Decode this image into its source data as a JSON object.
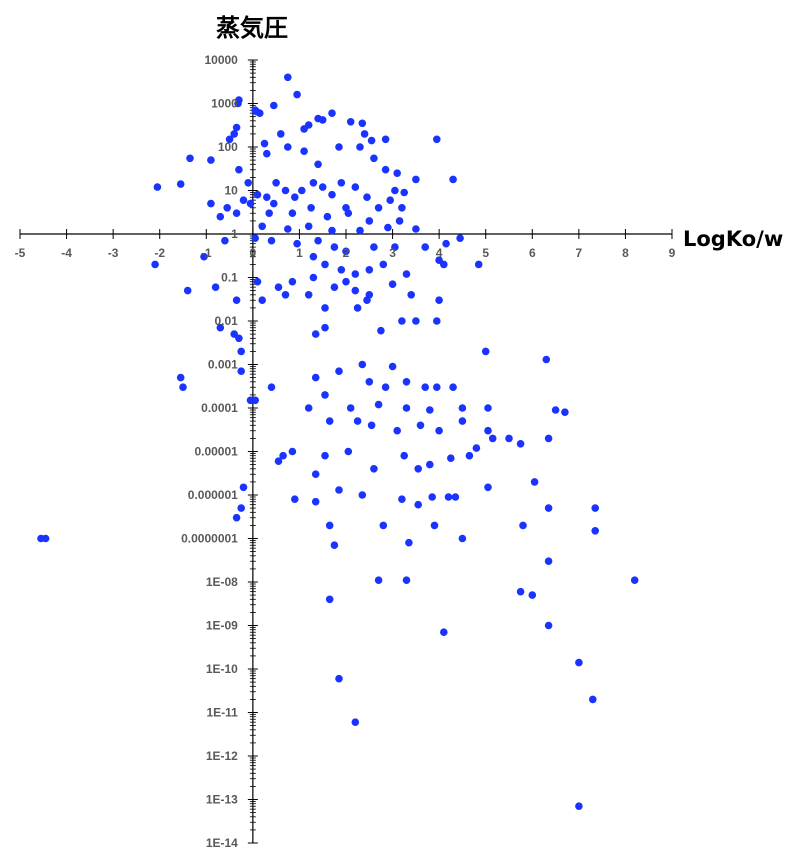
{
  "chart_data": {
    "type": "scatter",
    "title": "",
    "xlabel": "LogKo/w",
    "ylabel": "蒸気圧",
    "x_axis": {
      "min": -5,
      "max": 9,
      "tick_labels": [
        "-5",
        "-4",
        "-3",
        "-2",
        "-1",
        "0",
        "1",
        "2",
        "3",
        "4",
        "5",
        "6",
        "7",
        "8",
        "9"
      ]
    },
    "y_axis": {
      "scale": "log",
      "min": 1e-14,
      "max": 10000,
      "crosses_x_at": 0,
      "tick_labels": [
        "1E-14",
        "1E-13",
        "1E-12",
        "1E-11",
        "1E-10",
        "1E-09",
        "1E-08",
        "0.0000001",
        "0.000001",
        "0.00001",
        "0.0001",
        "0.001",
        "0.01",
        "0.1",
        "1",
        "10",
        "100",
        "1000",
        "10000"
      ]
    },
    "grid": false,
    "legend": "none",
    "marker_color": "#1a33ff",
    "points": [
      [
        0.75,
        4000
      ],
      [
        0.95,
        1600
      ],
      [
        -0.3,
        1200
      ],
      [
        -0.32,
        1000
      ],
      [
        0.45,
        900
      ],
      [
        0.05,
        700
      ],
      [
        0.08,
        650
      ],
      [
        0.15,
        600
      ],
      [
        1.7,
        600
      ],
      [
        1.4,
        450
      ],
      [
        1.5,
        420
      ],
      [
        2.1,
        380
      ],
      [
        2.35,
        350
      ],
      [
        1.2,
        320
      ],
      [
        3.95,
        150
      ],
      [
        2.4,
        200
      ],
      [
        1.1,
        260
      ],
      [
        2.55,
        140
      ],
      [
        2.85,
        150
      ],
      [
        0.25,
        120
      ],
      [
        0.6,
        200
      ],
      [
        -0.35,
        280
      ],
      [
        -0.4,
        200
      ],
      [
        -0.5,
        150
      ],
      [
        -1.35,
        55
      ],
      [
        -0.9,
        50
      ],
      [
        0.75,
        100
      ],
      [
        1.85,
        100
      ],
      [
        2.3,
        100
      ],
      [
        0.3,
        70
      ],
      [
        1.1,
        80
      ],
      [
        2.6,
        55
      ],
      [
        1.4,
        40
      ],
      [
        -0.3,
        30
      ],
      [
        2.85,
        30
      ],
      [
        3.1,
        25
      ],
      [
        3.5,
        18
      ],
      [
        4.3,
        18
      ],
      [
        -0.1,
        15
      ],
      [
        0.5,
        15
      ],
      [
        1.3,
        15
      ],
      [
        1.9,
        15
      ],
      [
        -1.55,
        14
      ],
      [
        -2.05,
        12
      ],
      [
        0.7,
        10
      ],
      [
        1.05,
        10
      ],
      [
        1.5,
        12
      ],
      [
        2.2,
        12
      ],
      [
        3.05,
        10
      ],
      [
        3.25,
        9
      ],
      [
        0.1,
        8
      ],
      [
        0.3,
        7
      ],
      [
        0.9,
        7
      ],
      [
        1.7,
        8
      ],
      [
        2.45,
        7
      ],
      [
        2.95,
        6
      ],
      [
        -0.05,
        5
      ],
      [
        -0.2,
        6
      ],
      [
        -0.9,
        5
      ],
      [
        -0.55,
        4
      ],
      [
        0.45,
        5
      ],
      [
        1.25,
        4
      ],
      [
        2.0,
        4
      ],
      [
        2.7,
        4
      ],
      [
        3.2,
        4
      ],
      [
        -0.7,
        2.5
      ],
      [
        -0.35,
        3
      ],
      [
        0.35,
        3
      ],
      [
        0.85,
        3
      ],
      [
        1.6,
        2.5
      ],
      [
        2.05,
        3
      ],
      [
        2.5,
        2
      ],
      [
        3.15,
        2
      ],
      [
        0.2,
        1.5
      ],
      [
        0.75,
        1.3
      ],
      [
        1.2,
        1.5
      ],
      [
        1.7,
        1.2
      ],
      [
        2.3,
        1.2
      ],
      [
        2.9,
        1.4
      ],
      [
        3.5,
        1.3
      ],
      [
        -0.6,
        0.7
      ],
      [
        0.05,
        0.8
      ],
      [
        0.4,
        0.7
      ],
      [
        0.95,
        0.6
      ],
      [
        1.4,
        0.7
      ],
      [
        1.75,
        0.5
      ],
      [
        2.0,
        0.4
      ],
      [
        2.6,
        0.5
      ],
      [
        3.05,
        0.5
      ],
      [
        3.7,
        0.5
      ],
      [
        4.15,
        0.6
      ],
      [
        4.45,
        0.8
      ],
      [
        4.85,
        0.2
      ],
      [
        4.0,
        0.25
      ],
      [
        4.1,
        0.2
      ],
      [
        -2.1,
        0.2
      ],
      [
        -1.05,
        0.3
      ],
      [
        1.3,
        0.3
      ],
      [
        1.55,
        0.2
      ],
      [
        1.9,
        0.15
      ],
      [
        2.2,
        0.12
      ],
      [
        2.5,
        0.15
      ],
      [
        2.8,
        0.2
      ],
      [
        3.3,
        0.12
      ],
      [
        -1.4,
        0.05
      ],
      [
        -0.8,
        0.06
      ],
      [
        0.1,
        0.08
      ],
      [
        0.55,
        0.06
      ],
      [
        0.85,
        0.08
      ],
      [
        1.3,
        0.1
      ],
      [
        1.75,
        0.06
      ],
      [
        2.0,
        0.08
      ],
      [
        2.2,
        0.05
      ],
      [
        2.5,
        0.04
      ],
      [
        3.0,
        0.07
      ],
      [
        3.4,
        0.04
      ],
      [
        4.0,
        0.03
      ],
      [
        -0.35,
        0.03
      ],
      [
        0.2,
        0.03
      ],
      [
        0.7,
        0.04
      ],
      [
        1.2,
        0.04
      ],
      [
        1.55,
        0.02
      ],
      [
        2.25,
        0.02
      ],
      [
        2.45,
        0.03
      ],
      [
        3.2,
        0.01
      ],
      [
        3.95,
        0.01
      ],
      [
        3.5,
        0.01
      ],
      [
        -0.4,
        0.005
      ],
      [
        -0.7,
        0.007
      ],
      [
        1.35,
        0.005
      ],
      [
        1.55,
        0.007
      ],
      [
        2.75,
        0.006
      ],
      [
        -0.3,
        0.004
      ],
      [
        -0.25,
        0.002
      ],
      [
        5.0,
        0.002
      ],
      [
        6.3,
        0.0013
      ],
      [
        -0.25,
        0.0007
      ],
      [
        2.35,
        0.001
      ],
      [
        3.0,
        0.0009
      ],
      [
        -1.55,
        0.0005
      ],
      [
        -1.5,
        0.0003
      ],
      [
        0.4,
        0.0003
      ],
      [
        1.35,
        0.0005
      ],
      [
        1.85,
        0.0007
      ],
      [
        2.5,
        0.0004
      ],
      [
        2.85,
        0.0003
      ],
      [
        3.3,
        0.0004
      ],
      [
        3.7,
        0.0003
      ],
      [
        3.95,
        0.0003
      ],
      [
        4.3,
        0.0003
      ],
      [
        -0.05,
        0.00015
      ],
      [
        0.05,
        0.00015
      ],
      [
        1.2,
        0.0001
      ],
      [
        1.55,
        0.0002
      ],
      [
        2.1,
        0.0001
      ],
      [
        2.7,
        0.00012
      ],
      [
        3.3,
        0.0001
      ],
      [
        3.8,
        9e-05
      ],
      [
        4.5,
        0.0001
      ],
      [
        5.05,
        0.0001
      ],
      [
        6.5,
        9e-05
      ],
      [
        6.7,
        8e-05
      ],
      [
        1.65,
        5e-05
      ],
      [
        2.25,
        5e-05
      ],
      [
        2.55,
        4e-05
      ],
      [
        3.1,
        3e-05
      ],
      [
        3.6,
        4e-05
      ],
      [
        4.0,
        3e-05
      ],
      [
        4.5,
        5e-05
      ],
      [
        5.05,
        3e-05
      ],
      [
        5.5,
        2e-05
      ],
      [
        6.35,
        2e-05
      ],
      [
        5.15,
        2e-05
      ],
      [
        5.75,
        1.5e-05
      ],
      [
        0.65,
        8e-06
      ],
      [
        0.55,
        6e-06
      ],
      [
        0.85,
        1e-05
      ],
      [
        1.55,
        8e-06
      ],
      [
        1.35,
        3e-06
      ],
      [
        2.05,
        1e-05
      ],
      [
        2.6,
        4e-06
      ],
      [
        3.25,
        8e-06
      ],
      [
        3.55,
        4e-06
      ],
      [
        3.8,
        5e-06
      ],
      [
        4.25,
        7e-06
      ],
      [
        4.65,
        8e-06
      ],
      [
        4.8,
        1.2e-05
      ],
      [
        5.05,
        1.5e-06
      ],
      [
        -0.25,
        5e-07
      ],
      [
        -0.2,
        1.5e-06
      ],
      [
        -0.35,
        3e-07
      ],
      [
        0.9,
        8e-07
      ],
      [
        1.35,
        7e-07
      ],
      [
        1.85,
        1.3e-06
      ],
      [
        2.35,
        1e-06
      ],
      [
        3.2,
        8e-07
      ],
      [
        3.55,
        6e-07
      ],
      [
        3.85,
        9e-07
      ],
      [
        4.2,
        9e-07
      ],
      [
        4.35,
        9e-07
      ],
      [
        6.05,
        2e-06
      ],
      [
        6.35,
        5e-07
      ],
      [
        7.35,
        5e-07
      ],
      [
        1.65,
        2e-07
      ],
      [
        2.8,
        2e-07
      ],
      [
        3.9,
        2e-07
      ],
      [
        5.8,
        2e-07
      ],
      [
        7.35,
        1.5e-07
      ],
      [
        -4.55,
        1e-07
      ],
      [
        -4.45,
        1e-07
      ],
      [
        1.75,
        7e-08
      ],
      [
        3.35,
        8e-08
      ],
      [
        4.5,
        1e-07
      ],
      [
        6.35,
        3e-08
      ],
      [
        2.7,
        1.1e-08
      ],
      [
        3.3,
        1.1e-08
      ],
      [
        5.75,
        6e-09
      ],
      [
        6.0,
        5e-09
      ],
      [
        8.2,
        1.1e-08
      ],
      [
        1.65,
        4e-09
      ],
      [
        4.1,
        7e-10
      ],
      [
        6.35,
        1e-09
      ],
      [
        7.0,
        1.4e-10
      ],
      [
        1.85,
        6e-11
      ],
      [
        7.3,
        2e-11
      ],
      [
        2.2,
        6e-12
      ],
      [
        7.0,
        7e-14
      ]
    ]
  }
}
